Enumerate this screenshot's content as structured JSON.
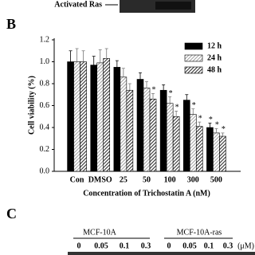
{
  "chart_data": {
    "type": "bar",
    "y_label": "Cell viability (%)",
    "x_label": "Concentration of Trichostatin A (nM)",
    "categories": [
      "Con",
      "DMSO",
      "25",
      "50",
      "100",
      "300",
      "500"
    ],
    "series": [
      {
        "name": "12 h",
        "color": "#000000",
        "values": [
          1.0,
          0.97,
          0.95,
          0.84,
          0.74,
          0.65,
          0.4
        ],
        "errors": [
          0.1,
          0.08,
          0.06,
          0.06,
          0.05,
          0.05,
          0.04
        ],
        "markers": [
          null,
          null,
          null,
          null,
          null,
          null,
          "*"
        ]
      },
      {
        "name": "24 h",
        "color": "#b0b0b0",
        "values": [
          1.0,
          0.99,
          0.86,
          0.76,
          0.62,
          0.52,
          0.35
        ],
        "errors": [
          0.12,
          0.12,
          0.08,
          0.06,
          0.06,
          0.05,
          0.04
        ],
        "markers": [
          null,
          null,
          null,
          null,
          "*",
          "*",
          "*"
        ]
      },
      {
        "name": "48 h",
        "color": "#505050",
        "values": [
          1.0,
          1.03,
          0.74,
          0.66,
          0.5,
          0.41,
          0.32
        ],
        "errors": [
          0.1,
          0.09,
          0.06,
          0.05,
          0.05,
          0.04,
          0.03
        ],
        "markers": [
          null,
          null,
          null,
          "*",
          "*",
          "*",
          "*"
        ]
      }
    ],
    "ylim": [
      0,
      1.2
    ],
    "yticks": [
      {
        "value": 0,
        "label": "0.0"
      },
      {
        "value": 0.2,
        "label": "0.2"
      },
      {
        "value": 0.4,
        "label": "0.4"
      },
      {
        "value": 0.6,
        "label": "0.6"
      },
      {
        "value": 0.8,
        "label": "0.8"
      },
      {
        "value": 1.0,
        "label": "1.0"
      },
      {
        "value": 1.2,
        "label": "1.2"
      }
    ],
    "legend": "top-right"
  },
  "blot_label": "Activated Ras",
  "panel_b_label": "B",
  "panel_c": {
    "label": "C",
    "groups": [
      "MCF-10A",
      "MCF-10A-ras"
    ],
    "doses": [
      "0",
      "0.05",
      "0.1",
      "0.3",
      "0",
      "0.05",
      "0.1",
      "0.3"
    ],
    "unit": "(μM)"
  }
}
